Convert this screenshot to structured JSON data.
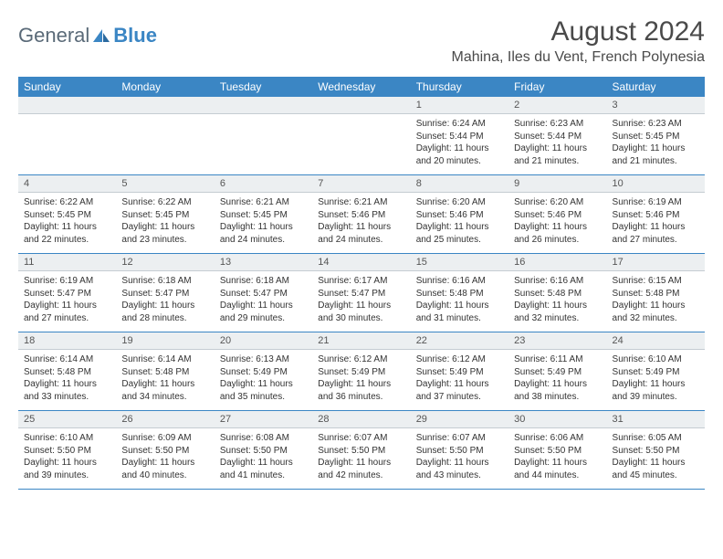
{
  "logo": {
    "general": "General",
    "blue": "Blue"
  },
  "header": {
    "month_title": "August 2024",
    "location": "Mahina, Iles du Vent, French Polynesia"
  },
  "style": {
    "header_bg": "#3b86c4",
    "header_fg": "#ffffff",
    "daynum_bg": "#eceff1",
    "row_divider": "#3b86c4",
    "font_size_cell": 10,
    "font_size_header": 12,
    "col_count": 7
  },
  "days_of_week": [
    "Sunday",
    "Monday",
    "Tuesday",
    "Wednesday",
    "Thursday",
    "Friday",
    "Saturday"
  ],
  "weeks": [
    {
      "nums": [
        "",
        "",
        "",
        "",
        "1",
        "2",
        "3"
      ],
      "cells": [
        [],
        [],
        [],
        [],
        [
          "Sunrise: 6:24 AM",
          "Sunset: 5:44 PM",
          "Daylight: 11 hours",
          "and 20 minutes."
        ],
        [
          "Sunrise: 6:23 AM",
          "Sunset: 5:44 PM",
          "Daylight: 11 hours",
          "and 21 minutes."
        ],
        [
          "Sunrise: 6:23 AM",
          "Sunset: 5:45 PM",
          "Daylight: 11 hours",
          "and 21 minutes."
        ]
      ]
    },
    {
      "nums": [
        "4",
        "5",
        "6",
        "7",
        "8",
        "9",
        "10"
      ],
      "cells": [
        [
          "Sunrise: 6:22 AM",
          "Sunset: 5:45 PM",
          "Daylight: 11 hours",
          "and 22 minutes."
        ],
        [
          "Sunrise: 6:22 AM",
          "Sunset: 5:45 PM",
          "Daylight: 11 hours",
          "and 23 minutes."
        ],
        [
          "Sunrise: 6:21 AM",
          "Sunset: 5:45 PM",
          "Daylight: 11 hours",
          "and 24 minutes."
        ],
        [
          "Sunrise: 6:21 AM",
          "Sunset: 5:46 PM",
          "Daylight: 11 hours",
          "and 24 minutes."
        ],
        [
          "Sunrise: 6:20 AM",
          "Sunset: 5:46 PM",
          "Daylight: 11 hours",
          "and 25 minutes."
        ],
        [
          "Sunrise: 6:20 AM",
          "Sunset: 5:46 PM",
          "Daylight: 11 hours",
          "and 26 minutes."
        ],
        [
          "Sunrise: 6:19 AM",
          "Sunset: 5:46 PM",
          "Daylight: 11 hours",
          "and 27 minutes."
        ]
      ]
    },
    {
      "nums": [
        "11",
        "12",
        "13",
        "14",
        "15",
        "16",
        "17"
      ],
      "cells": [
        [
          "Sunrise: 6:19 AM",
          "Sunset: 5:47 PM",
          "Daylight: 11 hours",
          "and 27 minutes."
        ],
        [
          "Sunrise: 6:18 AM",
          "Sunset: 5:47 PM",
          "Daylight: 11 hours",
          "and 28 minutes."
        ],
        [
          "Sunrise: 6:18 AM",
          "Sunset: 5:47 PM",
          "Daylight: 11 hours",
          "and 29 minutes."
        ],
        [
          "Sunrise: 6:17 AM",
          "Sunset: 5:47 PM",
          "Daylight: 11 hours",
          "and 30 minutes."
        ],
        [
          "Sunrise: 6:16 AM",
          "Sunset: 5:48 PM",
          "Daylight: 11 hours",
          "and 31 minutes."
        ],
        [
          "Sunrise: 6:16 AM",
          "Sunset: 5:48 PM",
          "Daylight: 11 hours",
          "and 32 minutes."
        ],
        [
          "Sunrise: 6:15 AM",
          "Sunset: 5:48 PM",
          "Daylight: 11 hours",
          "and 32 minutes."
        ]
      ]
    },
    {
      "nums": [
        "18",
        "19",
        "20",
        "21",
        "22",
        "23",
        "24"
      ],
      "cells": [
        [
          "Sunrise: 6:14 AM",
          "Sunset: 5:48 PM",
          "Daylight: 11 hours",
          "and 33 minutes."
        ],
        [
          "Sunrise: 6:14 AM",
          "Sunset: 5:48 PM",
          "Daylight: 11 hours",
          "and 34 minutes."
        ],
        [
          "Sunrise: 6:13 AM",
          "Sunset: 5:49 PM",
          "Daylight: 11 hours",
          "and 35 minutes."
        ],
        [
          "Sunrise: 6:12 AM",
          "Sunset: 5:49 PM",
          "Daylight: 11 hours",
          "and 36 minutes."
        ],
        [
          "Sunrise: 6:12 AM",
          "Sunset: 5:49 PM",
          "Daylight: 11 hours",
          "and 37 minutes."
        ],
        [
          "Sunrise: 6:11 AM",
          "Sunset: 5:49 PM",
          "Daylight: 11 hours",
          "and 38 minutes."
        ],
        [
          "Sunrise: 6:10 AM",
          "Sunset: 5:49 PM",
          "Daylight: 11 hours",
          "and 39 minutes."
        ]
      ]
    },
    {
      "nums": [
        "25",
        "26",
        "27",
        "28",
        "29",
        "30",
        "31"
      ],
      "cells": [
        [
          "Sunrise: 6:10 AM",
          "Sunset: 5:50 PM",
          "Daylight: 11 hours",
          "and 39 minutes."
        ],
        [
          "Sunrise: 6:09 AM",
          "Sunset: 5:50 PM",
          "Daylight: 11 hours",
          "and 40 minutes."
        ],
        [
          "Sunrise: 6:08 AM",
          "Sunset: 5:50 PM",
          "Daylight: 11 hours",
          "and 41 minutes."
        ],
        [
          "Sunrise: 6:07 AM",
          "Sunset: 5:50 PM",
          "Daylight: 11 hours",
          "and 42 minutes."
        ],
        [
          "Sunrise: 6:07 AM",
          "Sunset: 5:50 PM",
          "Daylight: 11 hours",
          "and 43 minutes."
        ],
        [
          "Sunrise: 6:06 AM",
          "Sunset: 5:50 PM",
          "Daylight: 11 hours",
          "and 44 minutes."
        ],
        [
          "Sunrise: 6:05 AM",
          "Sunset: 5:50 PM",
          "Daylight: 11 hours",
          "and 45 minutes."
        ]
      ]
    }
  ]
}
